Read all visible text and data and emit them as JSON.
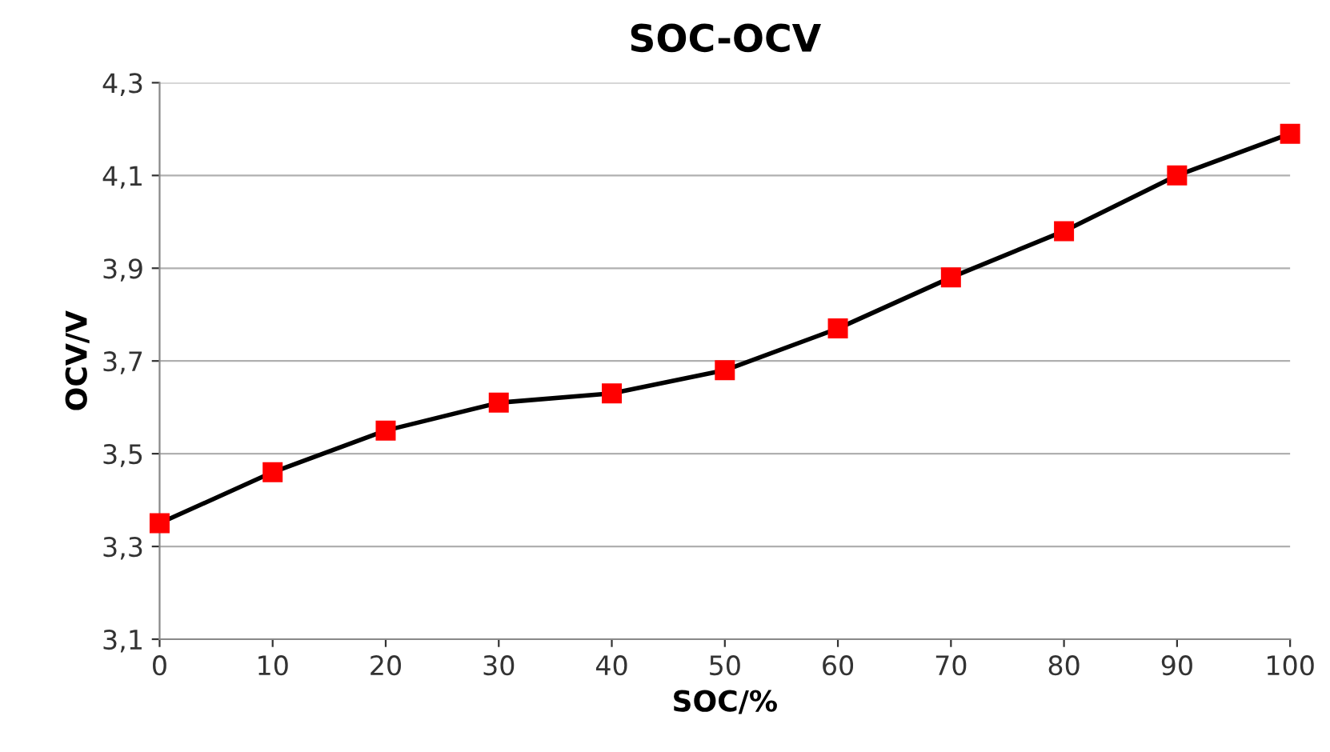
{
  "chart_data": {
    "type": "line",
    "title": "SOC-OCV",
    "xlabel": "SOC/%",
    "ylabel": "OCV/V",
    "x": [
      0,
      10,
      20,
      30,
      40,
      50,
      60,
      70,
      80,
      90,
      100
    ],
    "series": [
      {
        "color": "#000000",
        "colors": [
          "#ff0000",
          "#ff0000",
          "#ff0000",
          "#ff0000",
          "#ff0000",
          "#ff0000",
          "#ff0000",
          "#ff0000",
          "#ff0000",
          "#ff0000",
          "#ff0000"
        ],
        "values": [
          3.35,
          3.46,
          3.55,
          3.61,
          3.63,
          3.68,
          3.77,
          3.88,
          3.98,
          4.1,
          4.19
        ]
      }
    ],
    "xlim": [
      0,
      100
    ],
    "xticks": [
      0,
      10,
      20,
      30,
      40,
      50,
      60,
      70,
      80,
      90,
      100
    ],
    "ylim": [
      3.1,
      4.3
    ],
    "yticks": [
      {
        "value": 3.1,
        "label": "3,1"
      },
      {
        "value": 3.3,
        "label": "3,3"
      },
      {
        "value": 3.5,
        "label": "3,5"
      },
      {
        "value": 3.7,
        "label": "3,7"
      },
      {
        "value": 3.9,
        "label": "3,9"
      },
      {
        "value": 4.1,
        "label": "4,1"
      },
      {
        "value": 4.3,
        "label": "4,3"
      }
    ],
    "grid": "y",
    "marker": "square",
    "line_style": "solid",
    "legend": false
  }
}
